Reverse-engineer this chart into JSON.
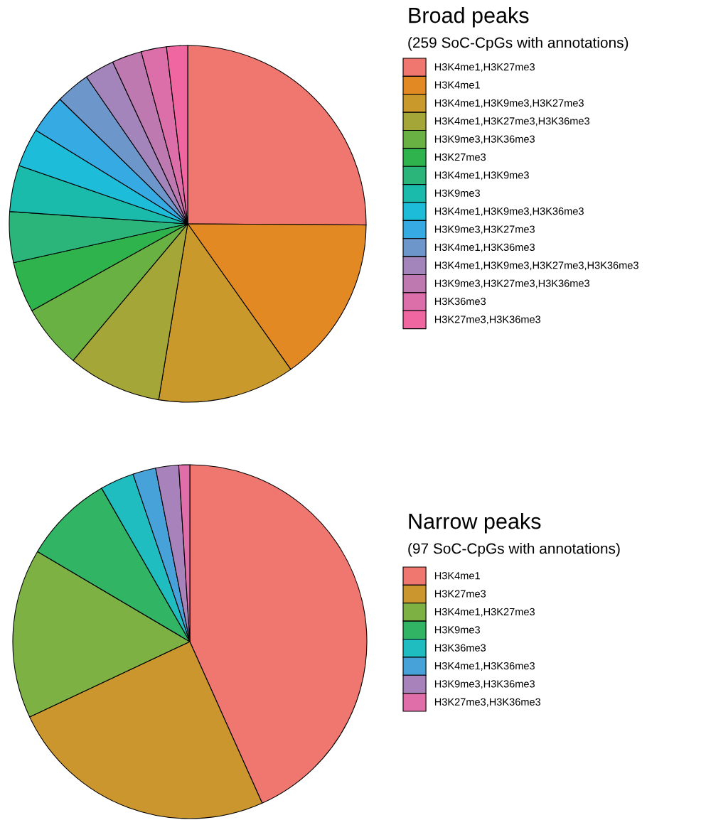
{
  "chart_data": [
    {
      "type": "pie",
      "title": "Broad peaks",
      "subtitle": "(259 SoC-CpGs with annotations)",
      "legend": "right",
      "categories": [
        "H3K4me1,H3K27me3",
        "H3K4me1",
        "H3K4me1,H3K9me3,H3K27me3",
        "H3K4me1,H3K27me3,H3K36me3",
        "H3K9me3,H3K36me3",
        "H3K27me3",
        "H3K4me1,H3K9me3",
        "H3K9me3",
        "H3K4me1,H3K9me3,H3K36me3",
        "H3K9me3,H3K27me3",
        "H3K4me1,H3K36me3",
        "H3K4me1,H3K9me3,H3K27me3,H3K36me3",
        "H3K9me3,H3K27me3,H3K36me3",
        "H3K36me3",
        "H3K27me3,H3K36me3"
      ],
      "values": [
        25.1,
        15.1,
        12.4,
        8.5,
        5.8,
        4.6,
        4.6,
        4.2,
        3.5,
        3.5,
        3.1,
        2.7,
        2.7,
        2.3,
        1.9
      ],
      "colors": [
        "#f07670",
        "#e28924",
        "#c9992c",
        "#a5a638",
        "#6ab144",
        "#2fb34c",
        "#2bb57a",
        "#1bbbac",
        "#1dbcd8",
        "#36aae2",
        "#6d96cb",
        "#a385bc",
        "#bd79b0",
        "#dc6fa9",
        "#f066a0"
      ]
    },
    {
      "type": "pie",
      "title": "Narrow peaks",
      "subtitle": "(97 SoC-CpGs with annotations)",
      "legend": "right",
      "categories": [
        "H3K4me1",
        "H3K27me3",
        "H3K4me1,H3K27me3",
        "H3K9me3",
        "H3K36me3",
        "H3K4me1,H3K36me3",
        "H3K9me3,H3K36me3",
        "H3K27me3,H3K36me3"
      ],
      "values": [
        43.3,
        24.7,
        15.5,
        8.2,
        3.1,
        2.1,
        2.1,
        1.0
      ],
      "colors": [
        "#f07670",
        "#cb962d",
        "#7db143",
        "#31b464",
        "#1fbdc0",
        "#46a2d9",
        "#a882ba",
        "#e06ea8"
      ]
    }
  ]
}
